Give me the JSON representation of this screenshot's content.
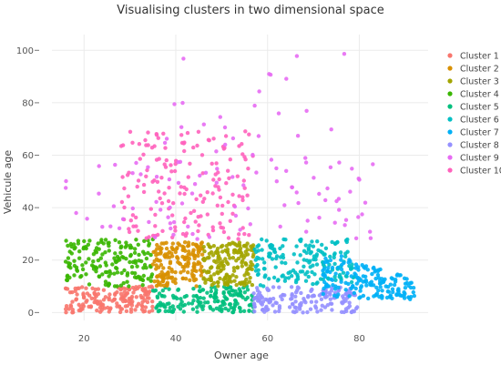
{
  "chart_data": {
    "type": "scatter",
    "title": "Visualising clusters in two dimensional space",
    "xlabel": "Owner age",
    "ylabel": "Vehicule age",
    "xlim": [
      13,
      95
    ],
    "ylim": [
      -3,
      106
    ],
    "x_ticks": [
      20,
      40,
      60,
      80
    ],
    "y_ticks": [
      0,
      20,
      40,
      60,
      80,
      100
    ],
    "grid": true,
    "legend_position": "right",
    "series": [
      {
        "name": "Cluster 1",
        "color": "#F8766D",
        "x_range": [
          16,
          35
        ],
        "y_range": [
          0,
          10
        ]
      },
      {
        "name": "Cluster 2",
        "color": "#D89000",
        "x_range": [
          35,
          46
        ],
        "y_range": [
          10,
          27
        ]
      },
      {
        "name": "Cluster 3",
        "color": "#A3A500",
        "x_range": [
          46,
          57
        ],
        "y_range": [
          10,
          27
        ]
      },
      {
        "name": "Cluster 4",
        "color": "#39B600",
        "x_range": [
          16,
          35
        ],
        "y_range": [
          10,
          28
        ]
      },
      {
        "name": "Cluster 5",
        "color": "#00BF7D",
        "x_range": [
          35,
          57
        ],
        "y_range": [
          0,
          10
        ]
      },
      {
        "name": "Cluster 6",
        "color": "#00BFC4",
        "x_range": [
          57,
          79
        ],
        "y_range": [
          10,
          28
        ]
      },
      {
        "name": "Cluster 7",
        "color": "#00B0F6",
        "x_range": [
          72,
          92
        ],
        "y_range": [
          5,
          24
        ]
      },
      {
        "name": "Cluster 8",
        "color": "#9590FF",
        "x_range": [
          57,
          80
        ],
        "y_range": [
          0,
          10
        ]
      },
      {
        "name": "Cluster 9",
        "color": "#E76BF3",
        "x_range": [
          16,
          84
        ],
        "y_range": [
          28,
          99
        ]
      },
      {
        "name": "Cluster 10",
        "color": "#FF62BC",
        "x_range": [
          28,
          57
        ],
        "y_range": [
          28,
          70
        ]
      }
    ]
  }
}
